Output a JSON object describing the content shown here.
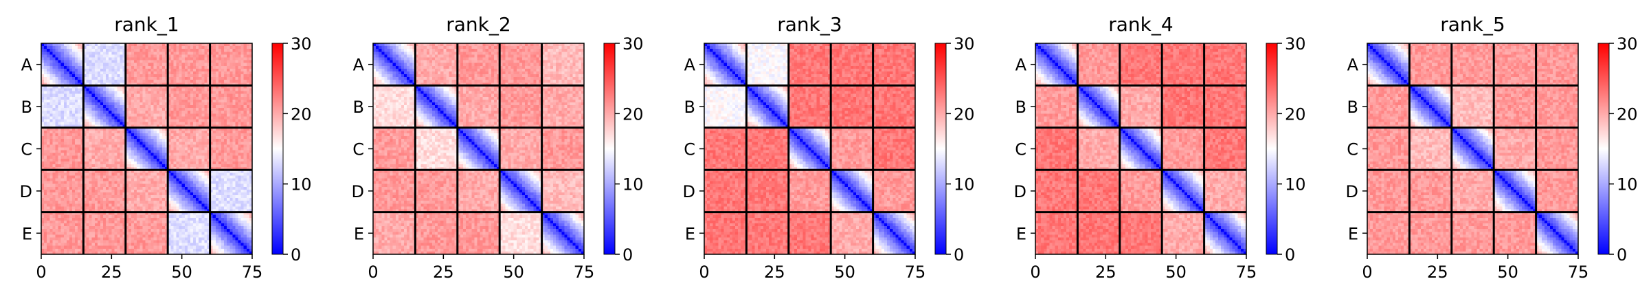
{
  "chart_data": [
    {
      "type": "heatmap",
      "title": "rank_1",
      "x_ticks": [
        "0",
        "25",
        "50",
        "75"
      ],
      "y_ticks": [
        "A",
        "B",
        "C",
        "D",
        "E"
      ],
      "colorbar_ticks": [
        "0",
        "10",
        "20",
        "30"
      ],
      "vmin": 0,
      "vmax": 30,
      "block_size": 15,
      "n": 75,
      "blocks": [
        [
          3,
          13,
          21,
          21,
          21
        ],
        [
          13,
          3,
          20,
          21,
          21
        ],
        [
          21,
          20,
          3,
          20,
          21
        ],
        [
          21,
          21,
          20,
          3,
          13
        ],
        [
          21,
          21,
          21,
          13,
          3
        ]
      ]
    },
    {
      "type": "heatmap",
      "title": "rank_2",
      "x_ticks": [
        "0",
        "25",
        "50",
        "75"
      ],
      "y_ticks": [
        "A",
        "B",
        "C",
        "D",
        "E"
      ],
      "colorbar_ticks": [
        "0",
        "10",
        "20",
        "30"
      ],
      "vmin": 0,
      "vmax": 30,
      "block_size": 15,
      "n": 75,
      "blocks": [
        [
          3,
          20,
          21,
          21,
          19
        ],
        [
          17,
          3,
          20,
          21,
          20
        ],
        [
          21,
          17,
          3,
          20,
          21
        ],
        [
          21,
          21,
          20,
          3,
          19
        ],
        [
          20,
          21,
          21,
          17,
          3
        ]
      ]
    },
    {
      "type": "heatmap",
      "title": "rank_3",
      "x_ticks": [
        "0",
        "25",
        "50",
        "75"
      ],
      "y_ticks": [
        "A",
        "B",
        "C",
        "D",
        "E"
      ],
      "colorbar_ticks": [
        "0",
        "10",
        "20",
        "30"
      ],
      "vmin": 0,
      "vmax": 30,
      "block_size": 15,
      "n": 75,
      "blocks": [
        [
          3,
          15,
          23,
          23,
          23
        ],
        [
          15,
          3,
          23,
          23,
          23
        ],
        [
          23,
          23,
          3,
          21,
          23
        ],
        [
          23,
          23,
          21,
          3,
          21
        ],
        [
          23,
          23,
          23,
          20,
          3
        ]
      ]
    },
    {
      "type": "heatmap",
      "title": "rank_4",
      "x_ticks": [
        "0",
        "25",
        "50",
        "75"
      ],
      "y_ticks": [
        "A",
        "B",
        "C",
        "D",
        "E"
      ],
      "colorbar_ticks": [
        "0",
        "10",
        "20",
        "30"
      ],
      "vmin": 0,
      "vmax": 30,
      "block_size": 15,
      "n": 75,
      "blocks": [
        [
          3,
          21,
          23,
          23,
          23
        ],
        [
          21,
          3,
          20,
          23,
          23
        ],
        [
          23,
          20,
          3,
          21,
          23
        ],
        [
          23,
          23,
          21,
          3,
          20
        ],
        [
          23,
          23,
          23,
          20,
          3
        ]
      ]
    },
    {
      "type": "heatmap",
      "title": "rank_5",
      "x_ticks": [
        "0",
        "25",
        "50",
        "75"
      ],
      "y_ticks": [
        "A",
        "B",
        "C",
        "D",
        "E"
      ],
      "colorbar_ticks": [
        "0",
        "10",
        "20",
        "30"
      ],
      "vmin": 0,
      "vmax": 30,
      "block_size": 15,
      "n": 75,
      "blocks": [
        [
          3,
          21,
          21,
          21,
          21
        ],
        [
          21,
          3,
          19,
          21,
          21
        ],
        [
          21,
          19,
          3,
          20,
          21
        ],
        [
          21,
          21,
          20,
          3,
          21
        ],
        [
          21,
          21,
          21,
          21,
          3
        ]
      ]
    }
  ],
  "colors": {
    "low": "#0000ff",
    "mid": "#ffffff",
    "high": "#ff0000",
    "block_border": "#000000"
  }
}
